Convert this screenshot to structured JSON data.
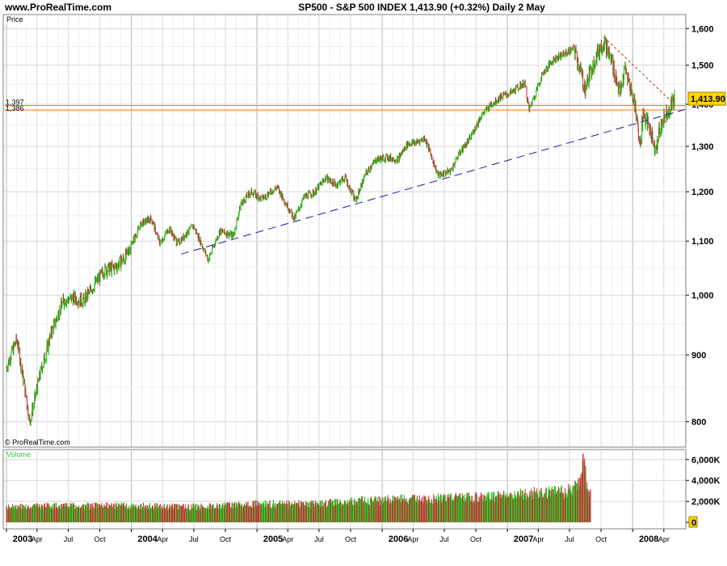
{
  "header": {
    "site": "www.ProRealTime.com",
    "title": "SP500 - S&P 500 INDEX    1,413.90 (+0.32%)    Daily  2 May"
  },
  "colors": {
    "up_candle": "#00c000",
    "down_candle": "#c03030",
    "grid": "#d8d8d8",
    "support_line": "#1a1ab0",
    "resistance_line": "#d02020",
    "level_lines": "#f08030",
    "price_tag_bg": "#ffd400",
    "volume_label": "#33cc33"
  },
  "chart_data": [
    {
      "type": "line",
      "title": "SP500 - S&P 500 INDEX",
      "panel_label": "Price",
      "watermark": "© ProRealTime.com",
      "scale": "log",
      "ylim": [
        765,
        1640
      ],
      "y_ticks": [
        800,
        900,
        1000,
        1100,
        1200,
        1300,
        1400,
        1500,
        1600
      ],
      "y_tick_labels": [
        "800",
        "900",
        "1,000",
        "1,100",
        "1,200",
        "1,300",
        "1,400",
        "1,500",
        "1,600"
      ],
      "x_ticks": [
        "2003",
        "Apr",
        "Jul",
        "Oct",
        "2004",
        "Apr",
        "Jul",
        "Oct",
        "2005",
        "Apr",
        "Jul",
        "Oct",
        "2006",
        "Apr",
        "Jul",
        "Oct",
        "2007",
        "Apr",
        "Jul",
        "Oct",
        "2008",
        "Apr"
      ],
      "last_price": 1413.9,
      "last_price_label": "1,413.90",
      "horizontal_levels": [
        {
          "value": 1397,
          "label": "1,397"
        },
        {
          "value": 1386,
          "label": "1,386"
        }
      ],
      "trendlines": [
        {
          "name": "support",
          "from": [
            "2004-05-25",
            1075
          ],
          "to": [
            "2008-05-02",
            1380
          ]
        },
        {
          "name": "resistance",
          "from": [
            "2007-10-09",
            1576
          ],
          "to": [
            "2008-05-02",
            1400
          ]
        }
      ],
      "series": [
        {
          "x": [
            "2003-01-02",
            "2003-02-01",
            "2003-03-11",
            "2003-04-15",
            "2003-05-15",
            "2003-06-17",
            "2003-07-15",
            "2003-08-15",
            "2003-09-17",
            "2003-10-15",
            "2003-11-15",
            "2003-12-15",
            "2004-01-30",
            "2004-02-28",
            "2004-03-24",
            "2004-04-20",
            "2004-05-15",
            "2004-06-30",
            "2004-08-12",
            "2004-09-15",
            "2004-10-25",
            "2004-11-15",
            "2004-12-15",
            "2005-01-15",
            "2005-02-28",
            "2005-04-20",
            "2005-05-20",
            "2005-06-20",
            "2005-07-20",
            "2005-08-20",
            "2005-09-15",
            "2005-10-15",
            "2005-11-15",
            "2005-12-15",
            "2006-01-15",
            "2006-02-15",
            "2006-03-15",
            "2006-04-15",
            "2006-05-05",
            "2006-06-13",
            "2006-07-20",
            "2006-08-15",
            "2006-09-15",
            "2006-10-15",
            "2006-11-15",
            "2006-12-15",
            "2007-01-15",
            "2007-02-20",
            "2007-03-05",
            "2007-04-15",
            "2007-05-15",
            "2007-06-15",
            "2007-07-15",
            "2007-08-15",
            "2007-09-15",
            "2007-10-09",
            "2007-11-01",
            "2007-11-26",
            "2007-12-10",
            "2008-01-10",
            "2008-01-22",
            "2008-02-01",
            "2008-02-20",
            "2008-03-10",
            "2008-03-17",
            "2008-04-01",
            "2008-04-20",
            "2008-05-02"
          ],
          "values": [
            880,
            925,
            800,
            880,
            940,
            990,
            995,
            990,
            1020,
            1045,
            1050,
            1070,
            1135,
            1145,
            1095,
            1125,
            1095,
            1130,
            1065,
            1120,
            1110,
            1175,
            1200,
            1185,
            1210,
            1145,
            1190,
            1200,
            1230,
            1215,
            1230,
            1180,
            1240,
            1270,
            1275,
            1270,
            1305,
            1310,
            1320,
            1235,
            1245,
            1285,
            1320,
            1370,
            1400,
            1420,
            1430,
            1455,
            1385,
            1480,
            1515,
            1530,
            1545,
            1440,
            1520,
            1565,
            1510,
            1425,
            1490,
            1390,
            1305,
            1380,
            1340,
            1290,
            1330,
            1370,
            1395,
            1414
          ]
        }
      ]
    },
    {
      "type": "bar",
      "title": "",
      "panel_label": "Volume",
      "y_ticks": [
        0,
        2000,
        4000,
        6000
      ],
      "y_tick_labels": [
        "0",
        "2,000K",
        "4,000K",
        "6,000K"
      ],
      "ylim": [
        0,
        6800
      ],
      "series": [
        {
          "x": [
            "2003-01-01",
            "2003-07-01",
            "2004-01-01",
            "2004-07-01",
            "2005-01-01",
            "2005-07-01",
            "2006-01-01",
            "2006-07-01",
            "2007-01-01",
            "2007-04-01",
            "2007-06-15",
            "2007-07-20",
            "2007-08-10",
            "2007-08-20",
            "2007-09-01"
          ],
          "values": [
            1500,
            1600,
            1600,
            1500,
            1800,
            1800,
            2200,
            2300,
            2600,
            2900,
            3000,
            3400,
            4800,
            3800,
            3000
          ]
        }
      ]
    }
  ]
}
